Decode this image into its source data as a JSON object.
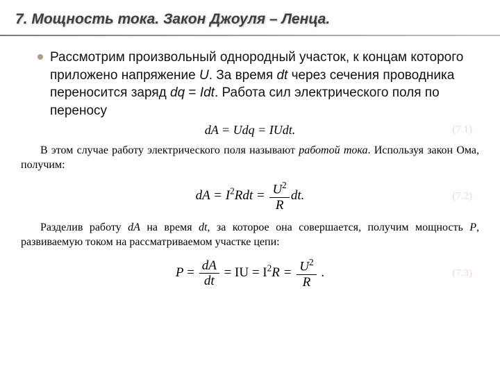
{
  "colors": {
    "heading_text": "#3f3f3f",
    "bullet": "#a9a18a",
    "body_text": "#111111",
    "serif_text": "#000000",
    "rule_start": "#7a7a7a",
    "rule_end": "#c0c0c0",
    "eqno_faded": "#f2d6d6",
    "background": "#ffffff"
  },
  "typography": {
    "heading_font": "Arial",
    "heading_size_pt": 21,
    "heading_weight": "bold",
    "heading_style": "italic",
    "body_font": "Arial",
    "body_size_pt": 19,
    "serif_font": "Times New Roman",
    "serif_size_pt": 16,
    "equation_size_pt": 19
  },
  "heading": "7. Мощность тока. Закон Джоуля – Ленца.",
  "para1": {
    "t1": "Рассмотрим произвольный однородный участок, к концам которого приложено напряжение ",
    "U": "U",
    "t2": ". За время ",
    "dt": "dt",
    "t3": " через сечения проводника переносится заряд ",
    "dq": "dq",
    "eq": " = ",
    "Idt": "Idt",
    "t4": ". Работа сил электрического поля по переносу"
  },
  "eq_a": {
    "text": "dA = Udq = IUdt.",
    "eqno": "(7.1)"
  },
  "serif1": {
    "t1": "В этом случае работу электрического поля называют ",
    "emph": "работой тока",
    "t2": ". Используя закон Ома, получим:"
  },
  "eq_b": {
    "lead": "dA = I",
    "sup2_a": "2",
    "mid": "Rdt = ",
    "frac_num": "U",
    "frac_num_sup": "2",
    "frac_den": "R",
    "tail": "dt.",
    "eqno": "(7.2)"
  },
  "serif2": {
    "t1": "Разделив работу ",
    "dA": "dA",
    "t2": " на время ",
    "dt": "dt",
    "t3": ", за которое она совершается, получим мощность ",
    "P": "P",
    "t4": ", развиваемую током на рассматриваемом участке цепи:"
  },
  "eq_c": {
    "P": "P",
    "eq1": " = ",
    "frac1_num": "dA",
    "frac1_den": "dt",
    "eq2": " = IU = I",
    "sup2": "2",
    "R": "R = ",
    "frac2_num": "U",
    "frac2_num_sup": "2",
    "frac2_den": "R",
    "tail": " .",
    "eqno": "(7.3)"
  }
}
